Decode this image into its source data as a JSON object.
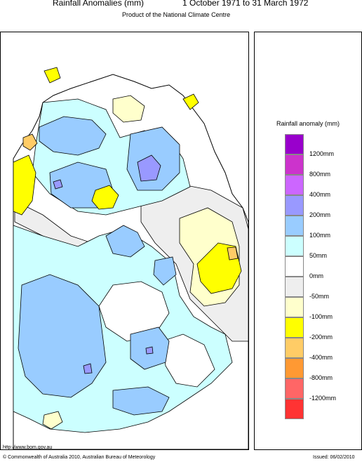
{
  "header": {
    "title": "Rainfall Anomalies (mm)",
    "period": "1 October 1971 to 31 March 1972",
    "subtitle": "Product of the National Climate Centre"
  },
  "legend": {
    "title": "Rainfall anomaly (mm)",
    "items": [
      {
        "label": "1200mm",
        "color": "#9900cc"
      },
      {
        "label": "800mm",
        "color": "#cc33cc"
      },
      {
        "label": "400mm",
        "color": "#cc66ff"
      },
      {
        "label": "200mm",
        "color": "#9999ff"
      },
      {
        "label": "100mm",
        "color": "#99ccff"
      },
      {
        "label": "50mm",
        "color": "#ccffff"
      },
      {
        "label": "0mm",
        "color": "#ffffff"
      },
      {
        "label": "-50mm",
        "color": "#eeeeee"
      },
      {
        "label": "-100mm",
        "color": "#ffffcc"
      },
      {
        "label": "-200mm",
        "color": "#ffff00"
      },
      {
        "label": "-400mm",
        "color": "#ffcc66"
      },
      {
        "label": "-800mm",
        "color": "#ff9933"
      },
      {
        "label": "-1200mm",
        "color": "#ff6666"
      },
      {
        "label": "",
        "color": "#ff3333"
      }
    ]
  },
  "footer": {
    "url": "http://www.bom.gov.au",
    "copyright": "© Commonwealth of Australia 2010, Australian Bureau of Meteorology",
    "issued": "Issued: 06/02/2010"
  }
}
